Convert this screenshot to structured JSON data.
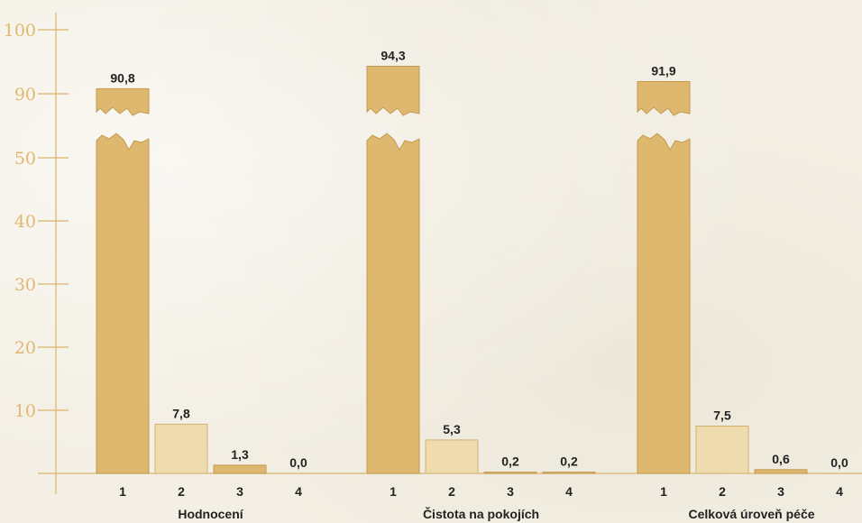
{
  "colors": {
    "primary_bar": "#ddb86e",
    "primary_stroke": "#c49a4f",
    "secondary_bar": "#efdcae",
    "secondary_stroke": "#d2b277",
    "axis": "#d9b56e",
    "tick_text": "#e0b870",
    "text": "#222222"
  },
  "chart_data": {
    "type": "bar",
    "y_ticks": [
      "10",
      "20",
      "30",
      "40",
      "50",
      "90",
      "100"
    ],
    "axis_break": {
      "lower_segment_max": 50,
      "upper_segment_min": 90,
      "upper_segment_max": 100
    },
    "groups": [
      {
        "label": "Hodnocení",
        "categories": [
          "1",
          "2",
          "3",
          "4"
        ],
        "values": [
          90.8,
          7.8,
          1.3,
          0.0
        ],
        "value_labels": [
          "90,8",
          "7,8",
          "1,3",
          "0,0"
        ]
      },
      {
        "label": "Čistota na pokojích",
        "categories": [
          "1",
          "2",
          "3",
          "4"
        ],
        "values": [
          94.3,
          5.3,
          0.2,
          0.2
        ],
        "value_labels": [
          "94,3",
          "5,3",
          "0,2",
          "0,2"
        ]
      },
      {
        "label": "Celková úroveň péče",
        "categories": [
          "1",
          "2",
          "3",
          "4"
        ],
        "values": [
          91.9,
          7.5,
          0.6,
          0.0
        ],
        "value_labels": [
          "91,9",
          "7,5",
          "0,6",
          "0,0"
        ]
      }
    ]
  }
}
